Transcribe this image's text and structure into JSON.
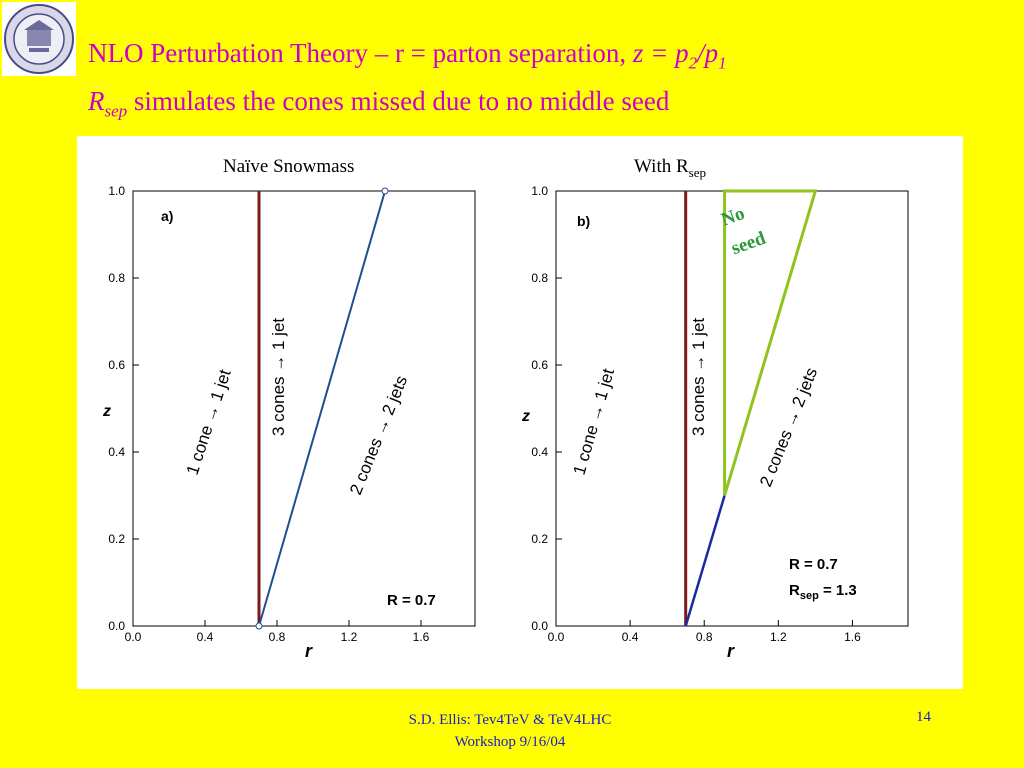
{
  "slide": {
    "title_line1_prefix": "NLO Perturbation Theory – r = parton separation, ",
    "title_line1_z": "z = p",
    "title_line1_sub2": "2",
    "title_line1_slash": "/p",
    "title_line1_sub1": "1",
    "title_line2_r": "R",
    "title_line2_sub": "sep",
    "title_line2_text": " simulates the cones missed due to no middle seed",
    "logo_icon": "university-seal-icon",
    "footer_line1": "S.D. Ellis: Tev4TeV & TeV4LHC",
    "footer_line2": "Workshop  9/16/04",
    "page_number": "14",
    "colors": {
      "background": "#ffff00",
      "title": "#cc00cc",
      "footer": "#1a1acc",
      "dark_red_line": "#7a1a1a",
      "blue_line": "#1f4f8f",
      "green_triangle": "#8fc31f",
      "no_seed_text": "#2a9a3a"
    }
  },
  "plot_a": {
    "heading": "Naïve Snowmass",
    "panel_label": "a)",
    "xlabel": "r",
    "ylabel": "z",
    "x_ticks": [
      "0.0",
      "0.4",
      "0.8",
      "1.2",
      "1.6"
    ],
    "y_ticks": [
      "0.0",
      "0.2",
      "0.4",
      "0.6",
      "0.8",
      "1.0"
    ],
    "region_left": "1 cone → 1 jet",
    "region_middle": "3 cones → 1 jet",
    "region_right": "2 cones → 2 jets",
    "param": "R = 0.7"
  },
  "plot_b": {
    "heading_prefix": "With R",
    "heading_sub": "sep",
    "panel_label": "b)",
    "xlabel": "r",
    "ylabel": "z",
    "x_ticks": [
      "0.0",
      "0.4",
      "0.8",
      "1.2",
      "1.6"
    ],
    "y_ticks": [
      "0.0",
      "0.2",
      "0.4",
      "0.6",
      "0.8",
      "1.0"
    ],
    "region_left": "1 cone → 1 jet",
    "region_middle": "3 cones → 1 jet",
    "region_right": "2 cones → 2 jets",
    "param_r": "R = 0.7",
    "param_rsep_prefix": "R",
    "param_rsep_sub": "sep",
    "param_rsep_value": " = 1.3",
    "no_seed_line1": "No",
    "no_seed_line2": "seed"
  },
  "chart_data": [
    {
      "type": "line",
      "title": "Naïve Snowmass",
      "xlabel": "r",
      "ylabel": "z",
      "xlim": [
        0.0,
        1.9
      ],
      "ylim": [
        0.0,
        1.0
      ],
      "series": [
        {
          "x": [
            0.7,
            0.7
          ],
          "y": [
            0.0,
            1.0
          ]
        },
        {
          "x": [
            0.7,
            1.4
          ],
          "y": [
            0.0,
            1.0
          ]
        }
      ]
    },
    {
      "type": "line",
      "title": "With Rsep",
      "xlabel": "r",
      "ylabel": "z",
      "xlim": [
        0.0,
        1.9
      ],
      "ylim": [
        0.0,
        1.0
      ],
      "series": [
        {
          "x": [
            0.7,
            0.7
          ],
          "y": [
            0.0,
            1.0
          ]
        },
        {
          "x": [
            0.7,
            0.91
          ],
          "y": [
            0.0,
            0.3
          ]
        },
        {
          "x": [
            0.91,
            0.91,
            1.4,
            0.91
          ],
          "y": [
            0.3,
            1.0,
            1.0,
            0.3
          ]
        }
      ]
    }
  ]
}
